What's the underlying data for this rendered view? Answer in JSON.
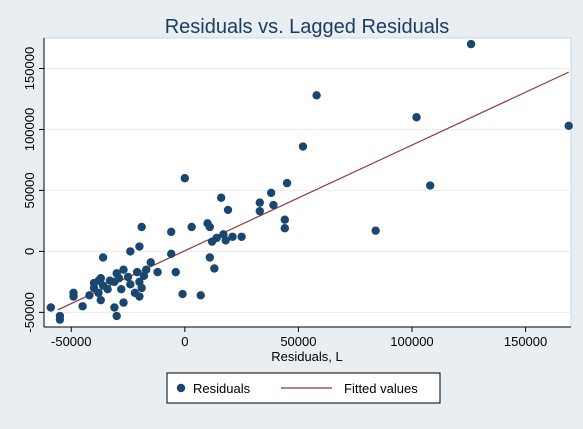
{
  "chart_data": {
    "type": "scatter",
    "title": "Residuals vs. Lagged Residuals",
    "xlabel": "Residuals, L",
    "ylabel": "",
    "xlim": [
      -62000,
      170000
    ],
    "ylim": [
      -62000,
      175000
    ],
    "x_ticks": [
      -50000,
      0,
      50000,
      100000,
      150000
    ],
    "x_tick_labels": [
      "-50000",
      "0",
      "50000",
      "100000",
      "150000"
    ],
    "y_ticks": [
      -50000,
      0,
      50000,
      100000,
      150000
    ],
    "y_tick_labels": [
      "-50000",
      "0",
      "50000",
      "100000",
      "150000"
    ],
    "grid": "horizontal",
    "legend": {
      "placement": "bottom",
      "entries": [
        {
          "label": "Residuals",
          "marker": "dot"
        },
        {
          "label": "Fitted values",
          "marker": "line"
        }
      ]
    },
    "colors": {
      "scatter": "#1a476f",
      "fit_line": "#90353b",
      "plot_bg": "#ffffff",
      "page_bg": "#e9eef3",
      "title": "#1e3a5f"
    },
    "series": [
      {
        "name": "Residuals",
        "kind": "scatter",
        "points": [
          [
            126000,
            170000
          ],
          [
            58000,
            128000
          ],
          [
            102000,
            110000
          ],
          [
            169000,
            103000
          ],
          [
            52000,
            86000
          ],
          [
            108000,
            54000
          ],
          [
            84000,
            17000
          ],
          [
            0,
            60000
          ],
          [
            45000,
            56000
          ],
          [
            38000,
            48000
          ],
          [
            16000,
            44000
          ],
          [
            33000,
            40000
          ],
          [
            39000,
            38000
          ],
          [
            19000,
            34000
          ],
          [
            33000,
            33000
          ],
          [
            44000,
            26000
          ],
          [
            10000,
            23000
          ],
          [
            11000,
            20000
          ],
          [
            3000,
            20000
          ],
          [
            44000,
            19000
          ],
          [
            -19000,
            20000
          ],
          [
            -6000,
            16000
          ],
          [
            17000,
            14000
          ],
          [
            21000,
            12000
          ],
          [
            25000,
            12000
          ],
          [
            14000,
            11000
          ],
          [
            18000,
            9000
          ],
          [
            12000,
            8000
          ],
          [
            -20000,
            4000
          ],
          [
            -24000,
            0
          ],
          [
            -6000,
            -2000
          ],
          [
            11000,
            -5000
          ],
          [
            -36000,
            -5000
          ],
          [
            -15000,
            -9000
          ],
          [
            13000,
            -14000
          ],
          [
            -12000,
            -17000
          ],
          [
            -4000,
            -17000
          ],
          [
            -17000,
            -15000
          ],
          [
            -21000,
            -17000
          ],
          [
            -27000,
            -15000
          ],
          [
            -30000,
            -18000
          ],
          [
            -18000,
            -20000
          ],
          [
            -25000,
            -21000
          ],
          [
            -29000,
            -22000
          ],
          [
            -33000,
            -24000
          ],
          [
            -37000,
            -22000
          ],
          [
            -38000,
            -24000
          ],
          [
            -40000,
            -26000
          ],
          [
            -31000,
            -25000
          ],
          [
            -20000,
            -25000
          ],
          [
            -24000,
            -27000
          ],
          [
            -36000,
            -28000
          ],
          [
            -19000,
            -30000
          ],
          [
            -34000,
            -31000
          ],
          [
            -28000,
            -31000
          ],
          [
            -22000,
            -34000
          ],
          [
            -38000,
            -34000
          ],
          [
            -49000,
            -34000
          ],
          [
            -42000,
            -36000
          ],
          [
            -49000,
            -37000
          ],
          [
            -1000,
            -35000
          ],
          [
            7000,
            -36000
          ],
          [
            -37000,
            -40000
          ],
          [
            -27000,
            -42000
          ],
          [
            -45000,
            -45000
          ],
          [
            -59000,
            -46000
          ],
          [
            -31000,
            -46000
          ],
          [
            -30000,
            -53000
          ],
          [
            -55000,
            -53000
          ],
          [
            -55000,
            -56000
          ],
          [
            -20000,
            -37000
          ],
          [
            -40000,
            -30000
          ]
        ]
      },
      {
        "name": "Fitted values",
        "kind": "line",
        "points": [
          [
            -56000,
            -48000
          ],
          [
            169000,
            147000
          ]
        ]
      }
    ]
  }
}
